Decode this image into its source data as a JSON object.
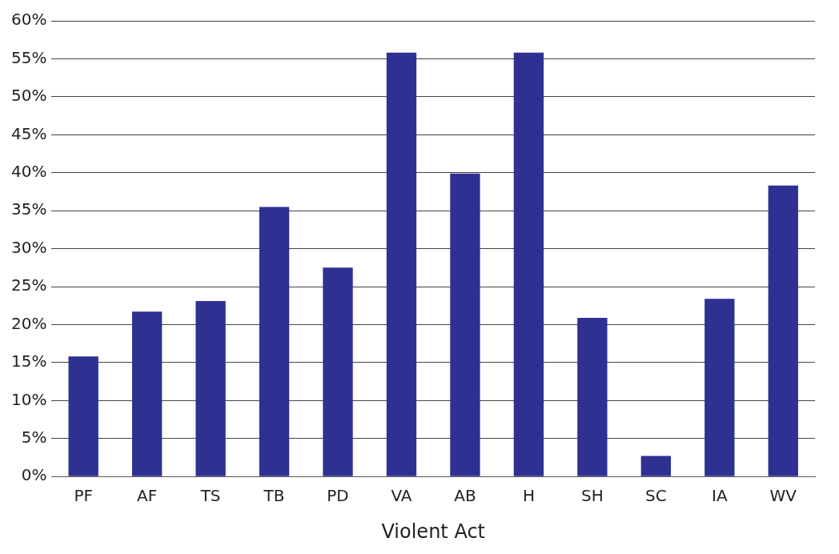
{
  "chart_data": {
    "type": "bar",
    "xlabel": "Violent Act",
    "categories": [
      "PF",
      "AF",
      "TS",
      "TB",
      "PD",
      "VA",
      "AB",
      "H",
      "SH",
      "SC",
      "IA",
      "WV"
    ],
    "values": [
      15.8,
      21.7,
      23.1,
      35.5,
      27.5,
      55.8,
      39.9,
      55.8,
      20.9,
      2.7,
      23.4,
      38.3
    ],
    "color": "#2e3192",
    "ylim": [
      0,
      60
    ],
    "yticks": [
      {
        "value": 0,
        "label": "0%"
      },
      {
        "value": 5,
        "label": "5%"
      },
      {
        "value": 10,
        "label": "10%"
      },
      {
        "value": 15,
        "label": "15%"
      },
      {
        "value": 20,
        "label": "20%"
      },
      {
        "value": 25,
        "label": "25%"
      },
      {
        "value": 30,
        "label": "30%"
      },
      {
        "value": 35,
        "label": "35%"
      },
      {
        "value": 40,
        "label": "40%"
      },
      {
        "value": 45,
        "label": "45%"
      },
      {
        "value": 50,
        "label": "50%"
      },
      {
        "value": 55,
        "label": "55%"
      },
      {
        "value": 60,
        "label": "60%"
      }
    ],
    "grid": "y"
  }
}
